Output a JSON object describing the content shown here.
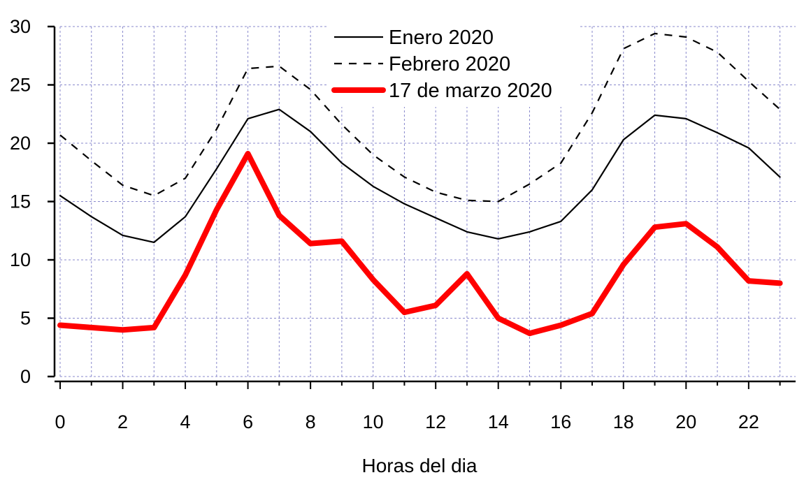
{
  "chart_data": {
    "type": "line",
    "title": "",
    "xlabel": "Horas del dia",
    "ylabel": "",
    "x": [
      0,
      1,
      2,
      3,
      4,
      5,
      6,
      7,
      8,
      9,
      10,
      11,
      12,
      13,
      14,
      15,
      16,
      17,
      18,
      19,
      20,
      21,
      22,
      23
    ],
    "xlim": [
      0,
      23.5
    ],
    "ylim": [
      0,
      30
    ],
    "x_ticks": [
      0,
      2,
      4,
      6,
      8,
      10,
      12,
      14,
      16,
      18,
      20,
      22
    ],
    "y_ticks": [
      0,
      5,
      10,
      15,
      20,
      25,
      30
    ],
    "grid": true,
    "legend_position": "top-center",
    "series": [
      {
        "name": "Enero 2020",
        "color": "#000000",
        "style": "solid",
        "values": [
          15.5,
          13.7,
          12.1,
          11.5,
          13.7,
          17.8,
          22.1,
          22.9,
          21.0,
          18.3,
          16.3,
          14.8,
          13.6,
          12.4,
          11.8,
          12.4,
          13.3,
          16.0,
          20.3,
          22.4,
          22.1,
          20.9,
          19.6,
          17.1
        ]
      },
      {
        "name": "Febrero 2020",
        "color": "#000000",
        "style": "dashed",
        "values": [
          20.7,
          18.5,
          16.4,
          15.5,
          17.0,
          21.2,
          26.4,
          26.6,
          24.6,
          21.6,
          19.0,
          17.1,
          15.8,
          15.1,
          15.0,
          16.5,
          18.3,
          22.6,
          28.1,
          29.4,
          29.1,
          27.8,
          25.3,
          22.9
        ]
      },
      {
        "name": "17 de marzo 2020",
        "color": "#ff0000",
        "style": "thick",
        "values": [
          4.4,
          4.2,
          4.0,
          4.2,
          8.7,
          14.3,
          19.1,
          13.8,
          11.4,
          11.6,
          8.3,
          5.5,
          6.1,
          8.8,
          5.0,
          3.7,
          4.4,
          5.4,
          9.6,
          12.8,
          13.1,
          11.1,
          8.2,
          8.0
        ]
      }
    ]
  }
}
